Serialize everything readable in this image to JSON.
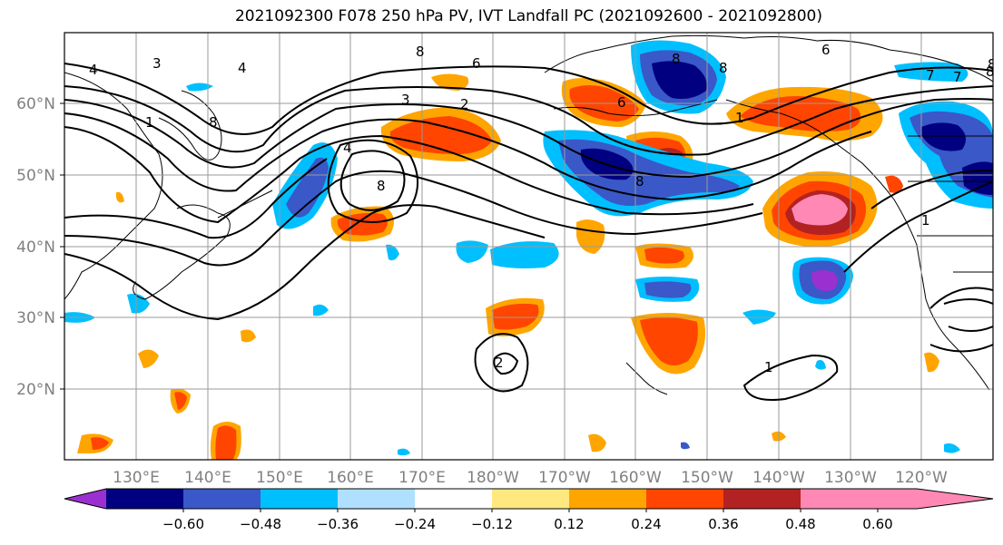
{
  "title": "2021092300 F078 250 hPa PV, IVT Landfall PC (2021092600 - 2021092800)",
  "map": {
    "lat_ticks": [
      "20°N",
      "30°N",
      "40°N",
      "50°N",
      "60°N"
    ],
    "lon_ticks": [
      "130°E",
      "140°E",
      "150°E",
      "160°E",
      "170°E",
      "180°W",
      "170°W",
      "160°W",
      "150°W",
      "140°W",
      "130°W",
      "120°W"
    ],
    "contour_labels": [
      "4",
      "3",
      "4",
      "8",
      "6",
      "8",
      "6",
      "8",
      "7",
      "8",
      "1",
      "8",
      "3",
      "2",
      "4",
      "8",
      "8",
      "6",
      "7",
      "8",
      "1",
      "1",
      "2",
      "1"
    ]
  },
  "colorbar": {
    "tick_labels": [
      "−0.60",
      "−0.48",
      "−0.36",
      "−0.24",
      "−0.12",
      "0.12",
      "0.24",
      "0.36",
      "0.48",
      "0.60"
    ],
    "colors": [
      "#9b30d0",
      "#000080",
      "#3a58c8",
      "#00bfff",
      "#b0e0ff",
      "#ffffff",
      "#ffe880",
      "#ffa500",
      "#ff4500",
      "#b22222",
      "#ff88b4"
    ]
  }
}
